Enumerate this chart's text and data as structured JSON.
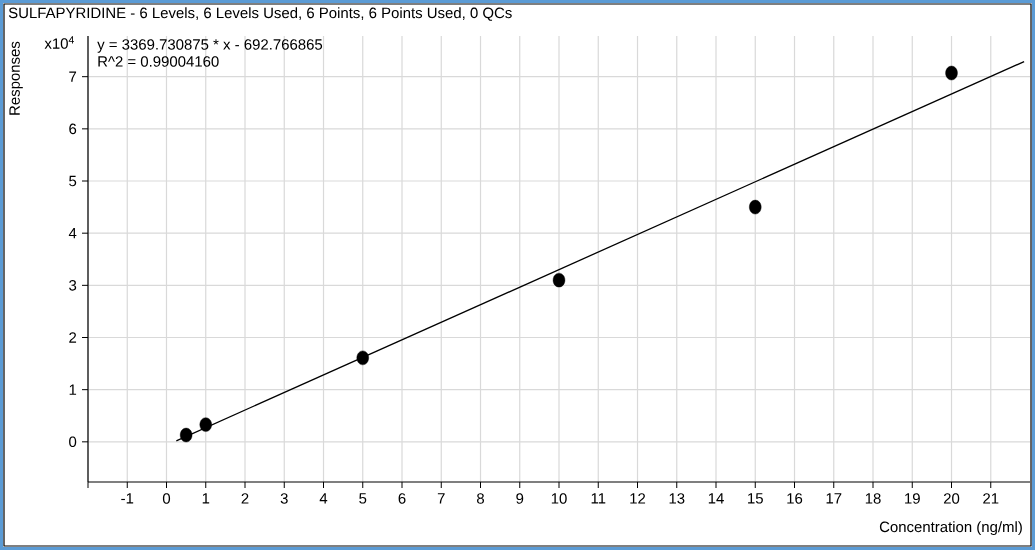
{
  "chart_data": {
    "type": "scatter",
    "title": "SULFAPYRIDINE - 6 Levels, 6 Levels Used, 6 Points, 6 Points Used, 0 QCs",
    "xlabel": "Concentration (ng/ml)",
    "ylabel": "Responses",
    "annotations": [
      "x10$^{4}$",
      "y = 3369.730875 * x  - 692.766865",
      "R^2 = 0.99004160"
    ],
    "xlim": [
      -2,
      22
    ],
    "ylim": [
      -0.77,
      7.78
    ],
    "xticks": [
      {
        "value": -2,
        "label": null
      },
      -1,
      0,
      1,
      2,
      3,
      4,
      5,
      6,
      7,
      8,
      9,
      10,
      11,
      12,
      13,
      14,
      15,
      16,
      17,
      18,
      19,
      20,
      21
    ],
    "yticks": [
      0,
      1,
      2,
      3,
      4,
      5,
      6,
      7
    ],
    "grid": true,
    "series": [
      {
        "color": "#000000",
        "marker": "circle",
        "x": [
          0.5,
          1,
          5,
          10,
          15,
          20
        ],
        "values": [
          0.13,
          0.33,
          1.61,
          3.1,
          4.5,
          7.07
        ]
      },
      {
        "type": "line",
        "color": "#000000",
        "marker": "none",
        "line_style": "solid",
        "x": [
          0.25,
          21.85
        ],
        "values": [
          0.02,
          7.29
        ]
      }
    ]
  }
}
